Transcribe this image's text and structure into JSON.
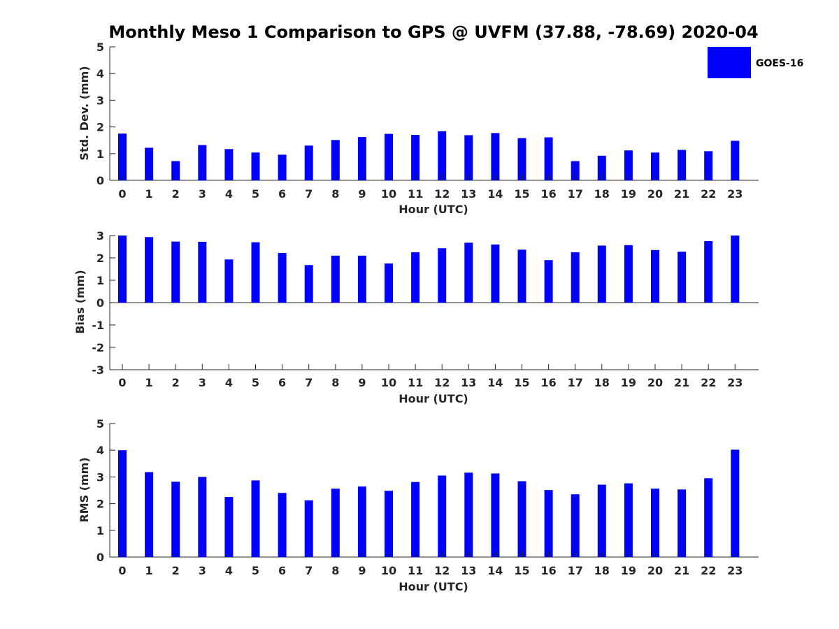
{
  "title": "Monthly Meso 1 Comparison to GPS @ UVFM (37.88, -78.69) 2020-04",
  "legend": {
    "label": "GOES-16",
    "color": "#0000ff"
  },
  "bar_color": "#0000ff",
  "chart_data": [
    {
      "type": "bar",
      "id": "stddev",
      "series_name": "GOES-16",
      "categories": [
        "0",
        "1",
        "2",
        "3",
        "4",
        "5",
        "6",
        "7",
        "8",
        "9",
        "10",
        "11",
        "12",
        "13",
        "14",
        "15",
        "16",
        "17",
        "18",
        "19",
        "20",
        "21",
        "22",
        "23"
      ],
      "values": [
        1.75,
        1.22,
        0.72,
        1.32,
        1.17,
        1.04,
        0.96,
        1.3,
        1.51,
        1.62,
        1.74,
        1.7,
        1.84,
        1.69,
        1.77,
        1.58,
        1.61,
        0.72,
        0.92,
        1.12,
        1.04,
        1.14,
        1.09,
        1.48
      ],
      "xlabel": "Hour (UTC)",
      "ylabel": "Std. Dev. (mm)",
      "ylim": [
        0,
        5
      ],
      "yticks": [
        "0",
        "1",
        "2",
        "3",
        "4",
        "5"
      ]
    },
    {
      "type": "bar",
      "id": "bias",
      "series_name": "GOES-16",
      "categories": [
        "0",
        "1",
        "2",
        "3",
        "4",
        "5",
        "6",
        "7",
        "8",
        "9",
        "10",
        "11",
        "12",
        "13",
        "14",
        "15",
        "16",
        "17",
        "18",
        "19",
        "20",
        "21",
        "22",
        "23"
      ],
      "values": [
        3.0,
        2.93,
        2.73,
        2.72,
        1.93,
        2.7,
        2.22,
        1.68,
        2.1,
        2.1,
        1.75,
        2.25,
        2.43,
        2.68,
        2.6,
        2.37,
        1.9,
        2.25,
        2.55,
        2.57,
        2.35,
        2.28,
        2.75,
        3.0
      ],
      "xlabel": "Hour (UTC)",
      "ylabel": "Bias (mm)",
      "ylim": [
        -3,
        3
      ],
      "yticks": [
        "-3",
        "-2",
        "-1",
        "0",
        "1",
        "2",
        "3"
      ]
    },
    {
      "type": "bar",
      "id": "rms",
      "series_name": "GOES-16",
      "categories": [
        "0",
        "1",
        "2",
        "3",
        "4",
        "5",
        "6",
        "7",
        "8",
        "9",
        "10",
        "11",
        "12",
        "13",
        "14",
        "15",
        "16",
        "17",
        "18",
        "19",
        "20",
        "21",
        "22",
        "23"
      ],
      "values": [
        4.0,
        3.18,
        2.82,
        3.0,
        2.25,
        2.87,
        2.4,
        2.12,
        2.56,
        2.64,
        2.48,
        2.81,
        3.05,
        3.16,
        3.13,
        2.84,
        2.51,
        2.35,
        2.71,
        2.76,
        2.56,
        2.53,
        2.95,
        4.02
      ],
      "xlabel": "Hour (UTC)",
      "ylabel": "RMS (mm)",
      "ylim": [
        0,
        5
      ],
      "yticks": [
        "0",
        "1",
        "2",
        "3",
        "4",
        "5"
      ]
    }
  ]
}
